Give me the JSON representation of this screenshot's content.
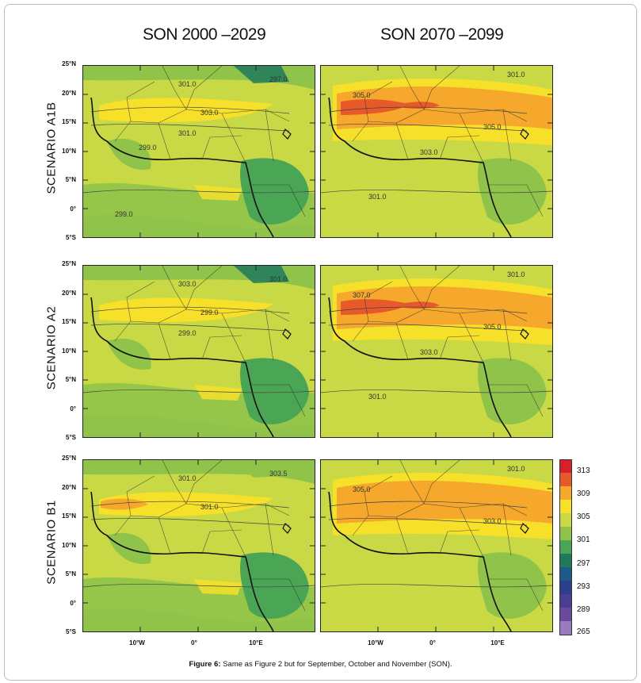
{
  "columns": [
    "SON 2000 –2029",
    "SON 2070 –2099"
  ],
  "rows": [
    "SCENARIO   A1B",
    "SCENARIO   A2",
    "SCENARIO   B1"
  ],
  "lat_labels": [
    "25°N",
    "20°N",
    "15°N",
    "10°N",
    "5°N",
    "0°",
    "5°S"
  ],
  "lon_labels": [
    "10°W",
    "0°",
    "10°E"
  ],
  "legend": {
    "values": [
      "313",
      "309",
      "305",
      "301",
      "297",
      "293",
      "289",
      "265"
    ],
    "colors": [
      "#d9202a",
      "#e8592a",
      "#f5a82c",
      "#f6e02a",
      "#c9d945",
      "#8fc34a",
      "#4aa555",
      "#1f7a5c",
      "#1c5a8a",
      "#2b3f8e",
      "#4b3d91",
      "#6a4a9e",
      "#9a7bc0"
    ]
  },
  "panels": [
    {
      "contours": [
        "301.0",
        "297.0",
        "303.0",
        "301.0",
        "299.0",
        "299.0"
      ]
    },
    {
      "contours": [
        "301.0",
        "305.0",
        "305.0",
        "303.0",
        "301.0"
      ]
    },
    {
      "contours": [
        "303.0",
        "301.0",
        "299.0",
        "299.0"
      ]
    },
    {
      "contours": [
        "301.0",
        "307.0",
        "305.0",
        "303.0",
        "301.0"
      ]
    },
    {
      "contours": [
        "301.0",
        "303.5",
        "301.0"
      ]
    },
    {
      "contours": [
        "301.0",
        "305.0",
        "303.0"
      ]
    }
  ],
  "caption": {
    "bold": "Figure 6:",
    "text": " Same as Figure 2 but for September, October and November (SON)."
  }
}
